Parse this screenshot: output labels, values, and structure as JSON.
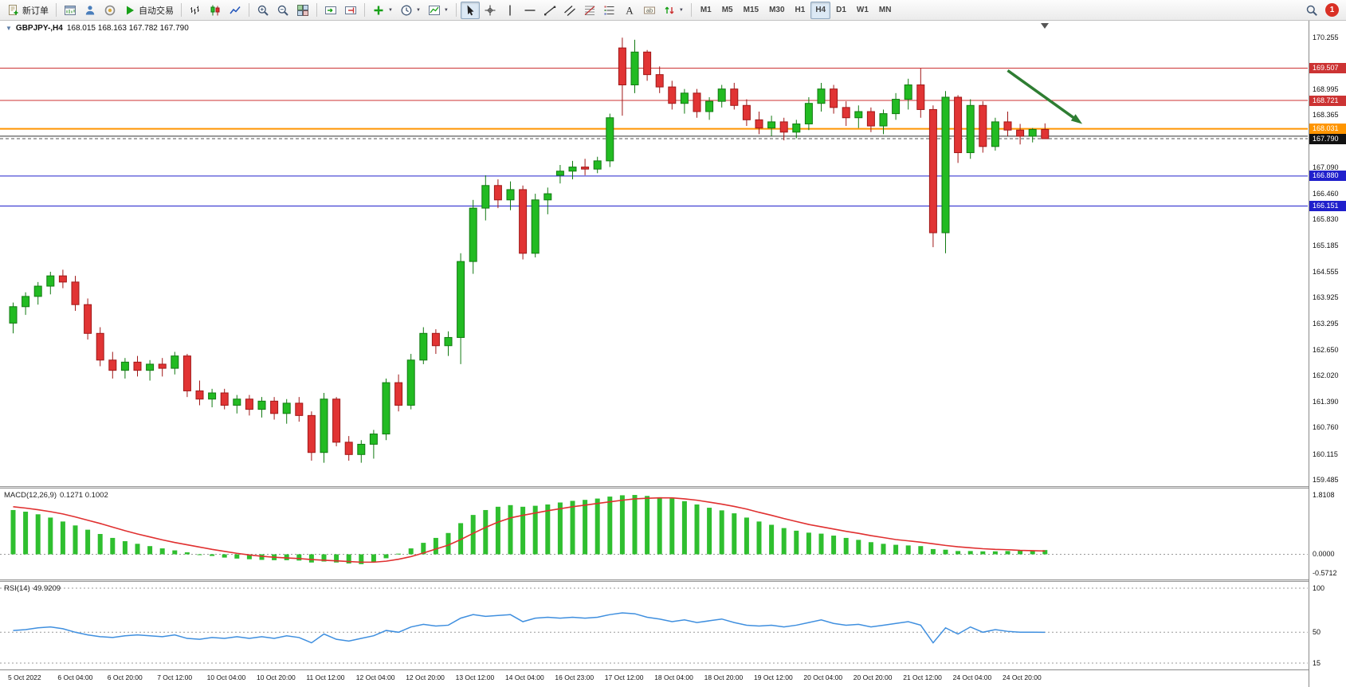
{
  "glyphs": {
    "caret": "▼",
    "one_click": "▼"
  },
  "toolbar": {
    "groups": [
      [
        {
          "name": "new-order-button",
          "icon": "new-order-icon",
          "label": "新订单"
        }
      ],
      [
        {
          "name": "new-chart-button",
          "icon": "chart-window-icon"
        },
        {
          "name": "profiles-button",
          "icon": "profiles-icon"
        },
        {
          "name": "data-window-button",
          "icon": "circle-icon"
        },
        {
          "name": "autotrading-button",
          "icon": "play-icon",
          "label": "自动交易"
        }
      ],
      [
        {
          "name": "bar-chart-button",
          "icon": "bars-icon"
        },
        {
          "name": "candlestick-chart-button",
          "icon": "candles-icon"
        },
        {
          "name": "line-chart-button",
          "icon": "line-chart-icon"
        }
      ],
      [
        {
          "name": "zoom-in-button",
          "icon": "zoom-in-icon"
        },
        {
          "name": "zoom-out-button",
          "icon": "zoom-out-icon"
        },
        {
          "name": "tile-windows-button",
          "icon": "tile-windows-icon"
        }
      ],
      [
        {
          "name": "autoscroll-button",
          "icon": "autoscroll-icon"
        },
        {
          "name": "chart-shift-button",
          "icon": "shift-icon"
        }
      ],
      [
        {
          "name": "indicators-dropdown",
          "icon": "plus-icon",
          "caret": true
        },
        {
          "name": "periods-dropdown",
          "icon": "clock-icon",
          "caret": true
        },
        {
          "name": "templates-dropdown",
          "icon": "template-icon",
          "caret": true
        }
      ],
      [
        {
          "name": "cursor-tool",
          "icon": "cursor-icon",
          "active": true
        },
        {
          "name": "crosshair-tool",
          "icon": "crosshair-icon"
        },
        {
          "name": "vertical-line-tool",
          "icon": "vline-icon"
        },
        {
          "name": "horizontal-line-tool",
          "icon": "hline-icon"
        },
        {
          "name": "trendline-tool",
          "icon": "trendline-icon"
        },
        {
          "name": "channel-tool",
          "icon": "channel-icon"
        },
        {
          "name": "fibonacci-tool",
          "icon": "fibonacci-icon"
        },
        {
          "name": "drawings-tool",
          "icon": "drawings-icon"
        },
        {
          "name": "text-tool",
          "icon": "text-icon"
        },
        {
          "name": "text-label-tool",
          "icon": "label-icon"
        },
        {
          "name": "arrows-tool",
          "icon": "arrows-icon",
          "caret": true
        }
      ],
      [
        {
          "name": "tf-m1",
          "label": "M1",
          "type": "tf"
        },
        {
          "name": "tf-m5",
          "label": "M5",
          "type": "tf"
        },
        {
          "name": "tf-m15",
          "label": "M15",
          "type": "tf"
        },
        {
          "name": "tf-m30",
          "label": "M30",
          "type": "tf"
        },
        {
          "name": "tf-h1",
          "label": "H1",
          "type": "tf"
        },
        {
          "name": "tf-h4",
          "label": "H4",
          "type": "tf",
          "active": true
        },
        {
          "name": "tf-d1",
          "label": "D1",
          "type": "tf"
        },
        {
          "name": "tf-w1",
          "label": "W1",
          "type": "tf"
        },
        {
          "name": "tf-mn",
          "label": "MN",
          "type": "tf"
        }
      ]
    ],
    "right": [
      {
        "name": "search-button",
        "icon": "search-icon"
      },
      {
        "name": "notification-badge",
        "badge": "1",
        "color": "#d93025"
      }
    ]
  },
  "chart_data": [
    {
      "type": "candlestick",
      "title": "GBPJPY-,H4",
      "ohlc_label": "168.015 168.163 167.782 167.790",
      "ylim": [
        159.485,
        170.255
      ],
      "y_ticks": [
        "170.255",
        "168.995",
        "168.365",
        "167.090",
        "166.460",
        "165.830",
        "165.185",
        "164.555",
        "163.925",
        "163.295",
        "162.650",
        "162.020",
        "161.390",
        "160.760",
        "160.115",
        "159.485"
      ],
      "x_labels": [
        "5 Oct 2022",
        "6 Oct 04:00",
        "6 Oct 20:00",
        "7 Oct 12:00",
        "10 Oct 04:00",
        "10 Oct 20:00",
        "11 Oct 12:00",
        "12 Oct 04:00",
        "12 Oct 20:00",
        "13 Oct 12:00",
        "14 Oct 04:00",
        "16 Oct 23:00",
        "17 Oct 12:00",
        "18 Oct 04:00",
        "18 Oct 20:00",
        "19 Oct 12:00",
        "20 Oct 04:00",
        "20 Oct 20:00",
        "21 Oct 12:00",
        "24 Oct 04:00",
        "24 Oct 20:00"
      ],
      "label_every": 4,
      "colors": {
        "up": "#22bb22",
        "up_border": "#127a12",
        "down": "#e13434",
        "down_border": "#a01818"
      },
      "candles": [
        [
          163.3,
          163.8,
          163.05,
          163.7
        ],
        [
          163.7,
          164.05,
          163.5,
          163.95
        ],
        [
          163.95,
          164.3,
          163.75,
          164.2
        ],
        [
          164.2,
          164.55,
          164.0,
          164.45
        ],
        [
          164.45,
          164.6,
          164.15,
          164.3
        ],
        [
          164.3,
          164.45,
          163.6,
          163.75
        ],
        [
          163.75,
          163.9,
          162.9,
          163.05
        ],
        [
          163.05,
          163.2,
          162.25,
          162.4
        ],
        [
          162.4,
          162.6,
          161.95,
          162.15
        ],
        [
          162.15,
          162.45,
          161.95,
          162.35
        ],
        [
          162.35,
          162.5,
          162.0,
          162.15
        ],
        [
          162.15,
          162.4,
          161.9,
          162.3
        ],
        [
          162.3,
          162.45,
          162.0,
          162.2
        ],
        [
          162.2,
          162.6,
          162.05,
          162.5
        ],
        [
          162.5,
          162.55,
          161.5,
          161.65
        ],
        [
          161.65,
          161.9,
          161.3,
          161.45
        ],
        [
          161.45,
          161.7,
          161.25,
          161.6
        ],
        [
          161.6,
          161.7,
          161.2,
          161.3
        ],
        [
          161.3,
          161.55,
          161.1,
          161.45
        ],
        [
          161.45,
          161.55,
          161.05,
          161.2
        ],
        [
          161.2,
          161.5,
          161.0,
          161.4
        ],
        [
          161.4,
          161.5,
          160.95,
          161.1
        ],
        [
          161.1,
          161.45,
          160.85,
          161.35
        ],
        [
          161.35,
          161.5,
          160.9,
          161.05
        ],
        [
          161.05,
          161.15,
          159.95,
          160.15
        ],
        [
          160.15,
          161.6,
          159.9,
          161.45
        ],
        [
          161.45,
          161.5,
          160.3,
          160.4
        ],
        [
          160.4,
          160.55,
          159.95,
          160.1
        ],
        [
          160.1,
          160.45,
          159.9,
          160.35
        ],
        [
          160.35,
          160.7,
          160.0,
          160.6
        ],
        [
          160.6,
          161.95,
          160.45,
          161.85
        ],
        [
          161.85,
          162.05,
          161.15,
          161.3
        ],
        [
          161.3,
          162.55,
          161.2,
          162.4
        ],
        [
          162.4,
          163.2,
          162.3,
          163.05
        ],
        [
          163.05,
          163.15,
          162.55,
          162.75
        ],
        [
          162.75,
          163.1,
          162.5,
          162.95
        ],
        [
          162.95,
          165.0,
          162.3,
          164.8
        ],
        [
          164.8,
          166.3,
          164.5,
          166.1
        ],
        [
          166.1,
          166.9,
          165.8,
          166.65
        ],
        [
          166.65,
          166.8,
          166.1,
          166.3
        ],
        [
          166.3,
          166.75,
          166.05,
          166.55
        ],
        [
          166.55,
          166.65,
          164.85,
          165.0
        ],
        [
          165.0,
          166.45,
          164.9,
          166.3
        ],
        [
          166.3,
          166.6,
          165.95,
          166.45
        ],
        [
          166.9,
          167.15,
          166.7,
          167.0
        ],
        [
          167.0,
          167.25,
          166.8,
          167.1
        ],
        [
          167.1,
          167.3,
          166.9,
          167.05
        ],
        [
          167.05,
          167.35,
          166.95,
          167.25
        ],
        [
          167.25,
          168.4,
          167.1,
          168.3
        ],
        [
          170.0,
          170.25,
          168.35,
          169.1
        ],
        [
          169.1,
          170.2,
          168.9,
          169.9
        ],
        [
          169.9,
          169.95,
          169.2,
          169.35
        ],
        [
          169.35,
          169.55,
          168.9,
          169.05
        ],
        [
          169.05,
          169.2,
          168.5,
          168.65
        ],
        [
          168.65,
          169.0,
          168.4,
          168.9
        ],
        [
          168.9,
          169.0,
          168.3,
          168.45
        ],
        [
          168.45,
          168.8,
          168.25,
          168.7
        ],
        [
          168.7,
          169.1,
          168.55,
          169.0
        ],
        [
          169.0,
          169.15,
          168.5,
          168.6
        ],
        [
          168.6,
          168.75,
          168.1,
          168.25
        ],
        [
          168.25,
          168.45,
          167.9,
          168.05
        ],
        [
          168.05,
          168.35,
          167.85,
          168.2
        ],
        [
          168.2,
          168.3,
          167.75,
          167.95
        ],
        [
          167.95,
          168.25,
          167.8,
          168.15
        ],
        [
          168.15,
          168.8,
          168.0,
          168.65
        ],
        [
          168.65,
          169.15,
          168.45,
          169.0
        ],
        [
          169.0,
          169.1,
          168.4,
          168.55
        ],
        [
          168.55,
          168.7,
          168.1,
          168.3
        ],
        [
          168.3,
          168.6,
          168.05,
          168.45
        ],
        [
          168.45,
          168.55,
          167.95,
          168.1
        ],
        [
          168.1,
          168.5,
          167.9,
          168.4
        ],
        [
          168.4,
          168.9,
          168.25,
          168.75
        ],
        [
          168.75,
          169.25,
          168.5,
          169.1
        ],
        [
          169.1,
          169.5,
          168.3,
          168.5
        ],
        [
          168.5,
          168.6,
          165.15,
          165.5
        ],
        [
          165.5,
          168.95,
          165.0,
          168.8
        ],
        [
          168.8,
          168.85,
          167.2,
          167.45
        ],
        [
          167.45,
          168.75,
          167.3,
          168.6
        ],
        [
          168.6,
          168.7,
          167.45,
          167.6
        ],
        [
          167.6,
          168.3,
          167.5,
          168.2
        ],
        [
          168.2,
          168.45,
          167.85,
          168.0
        ],
        [
          168.0,
          168.15,
          167.65,
          167.85
        ],
        [
          167.85,
          168.05,
          167.7,
          168.015
        ],
        [
          168.015,
          168.163,
          167.782,
          167.79
        ]
      ],
      "hlines": [
        {
          "value": 169.507,
          "color": "#cc3333",
          "label": "169.507",
          "label_bg": "#cc3333"
        },
        {
          "value": 168.721,
          "color": "#cc3333",
          "label": "168.721",
          "label_bg": "#cc3333"
        },
        {
          "value": 168.031,
          "color": "#ff9500",
          "label": "168.031",
          "label_bg": "#ff9500",
          "width": 2
        },
        {
          "value": 167.85,
          "color": "#333333",
          "width": 1
        },
        {
          "value": 166.88,
          "color": "#2020cc",
          "label": "166.880",
          "label_bg": "#2020cc"
        },
        {
          "value": 166.151,
          "color": "#2020cc",
          "label": "166.151",
          "label_bg": "#2020cc"
        }
      ],
      "current_price": {
        "value": 167.79,
        "label": "167.790",
        "bg": "#111111"
      },
      "arrow": {
        "from_index": 80,
        "from_price": 169.45,
        "to_index": 86,
        "to_price": 168.15,
        "color": "#2e7d32"
      }
    },
    {
      "type": "histogram+line",
      "title": "MACD(12,26,9)",
      "values_label": "0.1271 0.1002",
      "scale_labels": [
        "1.8108",
        "0.0000",
        "-0.5712"
      ],
      "ylim": [
        -0.5712,
        1.8108
      ],
      "colors": {
        "histogram": "#2fbf2f",
        "signal": "#e03030"
      },
      "histogram": [
        1.35,
        1.3,
        1.22,
        1.12,
        1.0,
        0.88,
        0.75,
        0.62,
        0.5,
        0.4,
        0.32,
        0.25,
        0.18,
        0.12,
        0.06,
        0.0,
        -0.05,
        -0.1,
        -0.13,
        -0.15,
        -0.17,
        -0.18,
        -0.18,
        -0.19,
        -0.25,
        -0.22,
        -0.25,
        -0.28,
        -0.3,
        -0.24,
        -0.12,
        0.02,
        0.18,
        0.35,
        0.5,
        0.65,
        0.95,
        1.2,
        1.35,
        1.45,
        1.5,
        1.45,
        1.48,
        1.52,
        1.58,
        1.63,
        1.66,
        1.7,
        1.76,
        1.8,
        1.81,
        1.78,
        1.74,
        1.7,
        1.62,
        1.52,
        1.42,
        1.34,
        1.25,
        1.12,
        1.0,
        0.9,
        0.8,
        0.72,
        0.66,
        0.63,
        0.57,
        0.5,
        0.44,
        0.37,
        0.32,
        0.29,
        0.27,
        0.25,
        0.16,
        0.14,
        0.1,
        0.1,
        0.09,
        0.09,
        0.1,
        0.11,
        0.12,
        0.13
      ],
      "signal": [
        1.45,
        1.41,
        1.36,
        1.3,
        1.23,
        1.14,
        1.04,
        0.94,
        0.83,
        0.72,
        0.62,
        0.53,
        0.44,
        0.36,
        0.29,
        0.22,
        0.15,
        0.09,
        0.03,
        -0.02,
        -0.06,
        -0.09,
        -0.11,
        -0.13,
        -0.16,
        -0.18,
        -0.2,
        -0.22,
        -0.24,
        -0.24,
        -0.21,
        -0.15,
        -0.07,
        0.04,
        0.16,
        0.28,
        0.45,
        0.64,
        0.82,
        0.98,
        1.11,
        1.19,
        1.26,
        1.33,
        1.39,
        1.45,
        1.5,
        1.55,
        1.6,
        1.65,
        1.69,
        1.71,
        1.72,
        1.72,
        1.69,
        1.65,
        1.59,
        1.53,
        1.46,
        1.38,
        1.28,
        1.19,
        1.09,
        1.0,
        0.91,
        0.84,
        0.77,
        0.7,
        0.64,
        0.57,
        0.51,
        0.45,
        0.41,
        0.37,
        0.32,
        0.27,
        0.23,
        0.2,
        0.17,
        0.15,
        0.14,
        0.12,
        0.11,
        0.1
      ]
    },
    {
      "type": "line",
      "title": "RSI(14)",
      "values_label": "49.9209",
      "levels": [
        "100",
        "50",
        "15"
      ],
      "ylim": [
        15,
        100
      ],
      "color": "#3f8fdf",
      "values": [
        52,
        53,
        55,
        56,
        54,
        50,
        47,
        45,
        44,
        46,
        47,
        46,
        45,
        47,
        43,
        42,
        44,
        43,
        45,
        43,
        45,
        43,
        46,
        44,
        38,
        48,
        42,
        40,
        43,
        46,
        52,
        50,
        56,
        59,
        57,
        58,
        66,
        70,
        68,
        69,
        70,
        62,
        66,
        67,
        66,
        67,
        66,
        67,
        70,
        72,
        71,
        67,
        65,
        62,
        64,
        61,
        63,
        65,
        61,
        58,
        57,
        58,
        56,
        58,
        61,
        64,
        60,
        58,
        59,
        56,
        58,
        60,
        62,
        58,
        38,
        55,
        48,
        56,
        50,
        53,
        51,
        50,
        50,
        49.92
      ]
    }
  ]
}
